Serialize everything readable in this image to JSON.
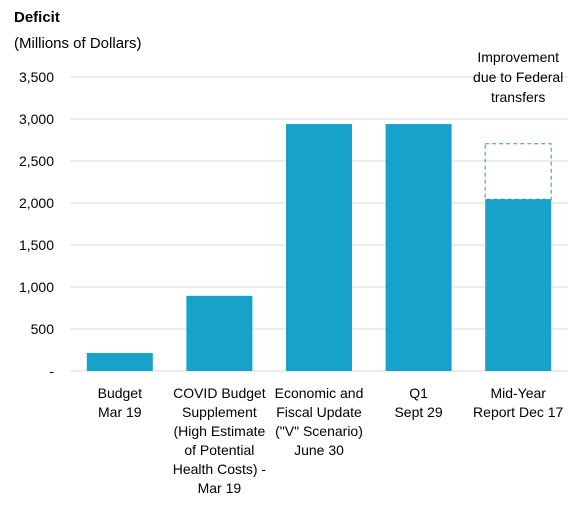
{
  "chart_data": {
    "type": "bar",
    "title": "Deficit",
    "subtitle": "(Millions of Dollars)",
    "ylim": [
      0,
      3500
    ],
    "yticks": [
      0,
      500,
      1000,
      1500,
      2000,
      2500,
      3000,
      3500
    ],
    "ytick_labels": [
      "-",
      "500",
      "1,000",
      "1,500",
      "2,000",
      "2,500",
      "3,000",
      "3,500"
    ],
    "grid": true,
    "categories": [
      [
        "Budget",
        "Mar 19"
      ],
      [
        "COVID Budget",
        "Supplement",
        "(High Estimate",
        "of Potential",
        "Health Costs) -",
        "Mar 19"
      ],
      [
        "Economic and",
        "Fiscal Update",
        "(\"V\" Scenario)",
        "June 30"
      ],
      [
        "Q1",
        "Sept 29"
      ],
      [
        "Mid-Year",
        "Report Dec 17"
      ]
    ],
    "values": [
      215,
      895,
      2940,
      2940,
      2045
    ],
    "improvement": {
      "category_index": 4,
      "from": 2045,
      "to": 2705,
      "label": [
        "Improvement",
        "due  to Federal",
        "transfers"
      ]
    },
    "colors": {
      "bar": "#17a2c9",
      "grid": "#d9d9d9",
      "improvement_border": "#2fa36b"
    }
  }
}
